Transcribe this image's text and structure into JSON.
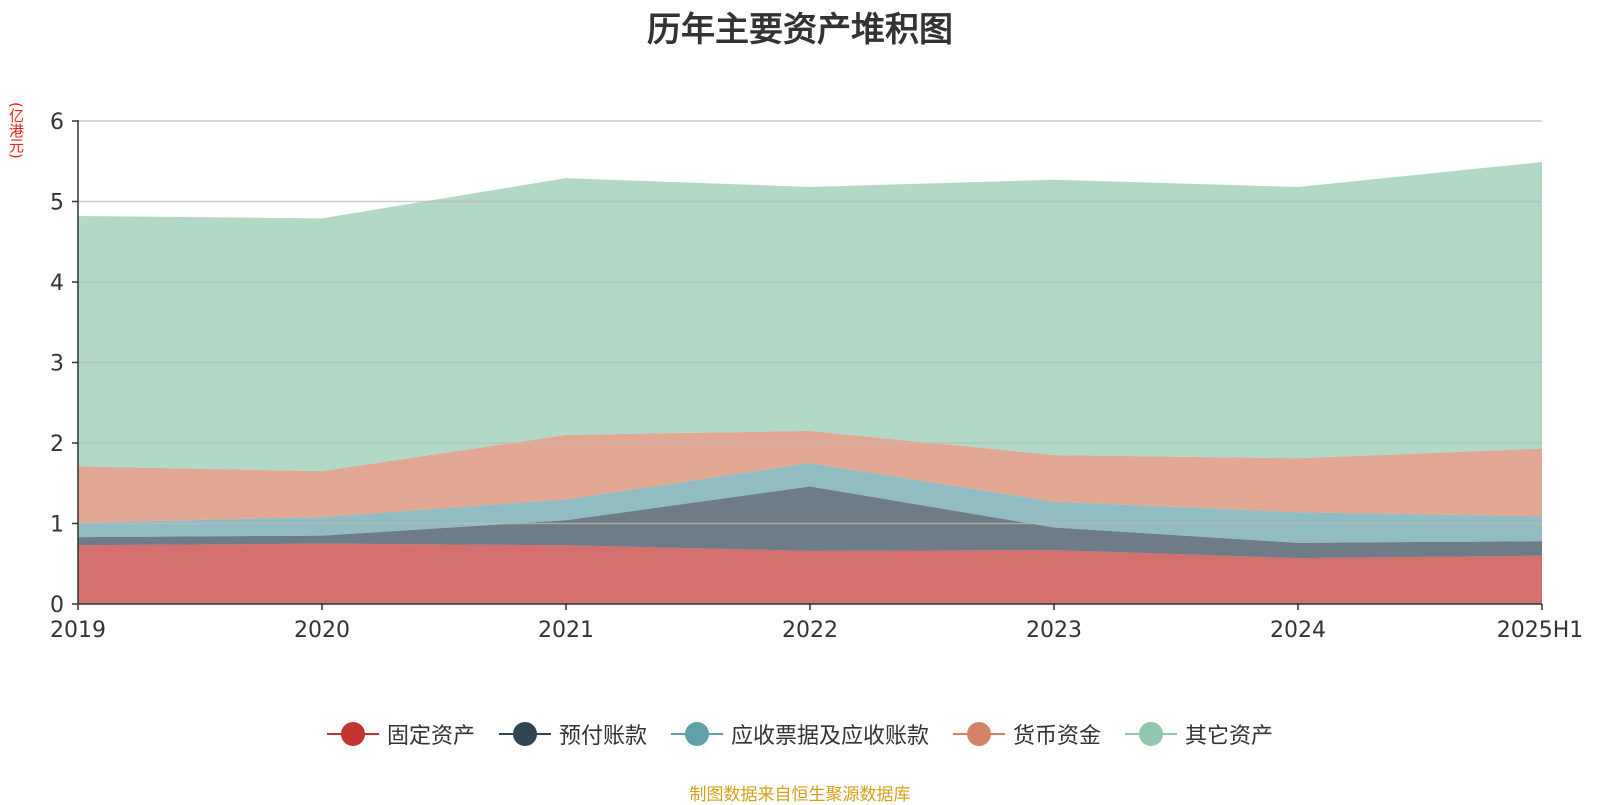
{
  "title": "历年主要资产堆积图",
  "unit_label": "(亿港元)",
  "source_text": "制图数据来自恒生聚源数据库",
  "chart_data": {
    "type": "area",
    "stacked": true,
    "title": "历年主要资产堆积图",
    "ylabel": "(亿港元)",
    "xlabel": "",
    "categories": [
      "2019",
      "2020",
      "2021",
      "2022",
      "2023",
      "2024",
      "2025H1"
    ],
    "ylim": [
      0,
      6
    ],
    "yticks": [
      0,
      1,
      2,
      3,
      4,
      5,
      6
    ],
    "grid": true,
    "legend_position": "bottom",
    "series": [
      {
        "name": "固定资产",
        "color": "#c23531",
        "values": [
          0.73,
          0.75,
          0.73,
          0.66,
          0.67,
          0.57,
          0.6
        ]
      },
      {
        "name": "预付账款",
        "color": "#2f4554",
        "values": [
          0.1,
          0.1,
          0.31,
          0.8,
          0.28,
          0.19,
          0.18
        ]
      },
      {
        "name": "应收票据及应收账款",
        "color": "#61a0a8",
        "values": [
          0.18,
          0.23,
          0.26,
          0.29,
          0.32,
          0.38,
          0.31
        ]
      },
      {
        "name": "货币资金",
        "color": "#d48265",
        "values": [
          0.7,
          0.57,
          0.8,
          0.4,
          0.58,
          0.67,
          0.84
        ]
      },
      {
        "name": "其它资产",
        "color": "#91c7ae",
        "values": [
          3.11,
          3.14,
          3.19,
          3.03,
          3.42,
          3.37,
          3.56
        ]
      }
    ]
  }
}
